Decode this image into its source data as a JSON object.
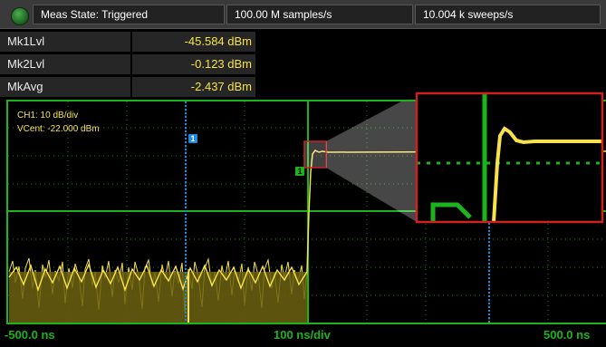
{
  "status": {
    "meas_state": "Meas State: Triggered",
    "sample_rate": "100.00 M samples/s",
    "sweep_rate": "10.004 k sweeps/s"
  },
  "measurements": [
    {
      "label": "Mk1Lvl",
      "value": "-45.584 dBm"
    },
    {
      "label": "Mk2Lvl",
      "value": "-0.123 dBm"
    },
    {
      "label": "MkAvg",
      "value": "-2.437 dBm"
    }
  ],
  "plot": {
    "channel_scale": "CH1: 10 dB/div",
    "vcent": "VCent: -22.000 dBm",
    "x_start": "-500.0 ns",
    "x_div": "100 ns/div",
    "x_end": "500.0 ns",
    "marker1": "1",
    "marker2": "1",
    "colors": {
      "grid": "#1db31d",
      "trace": "#f7e24a",
      "marker": "#1e88e5",
      "zoom_border": "#cc2222"
    }
  }
}
